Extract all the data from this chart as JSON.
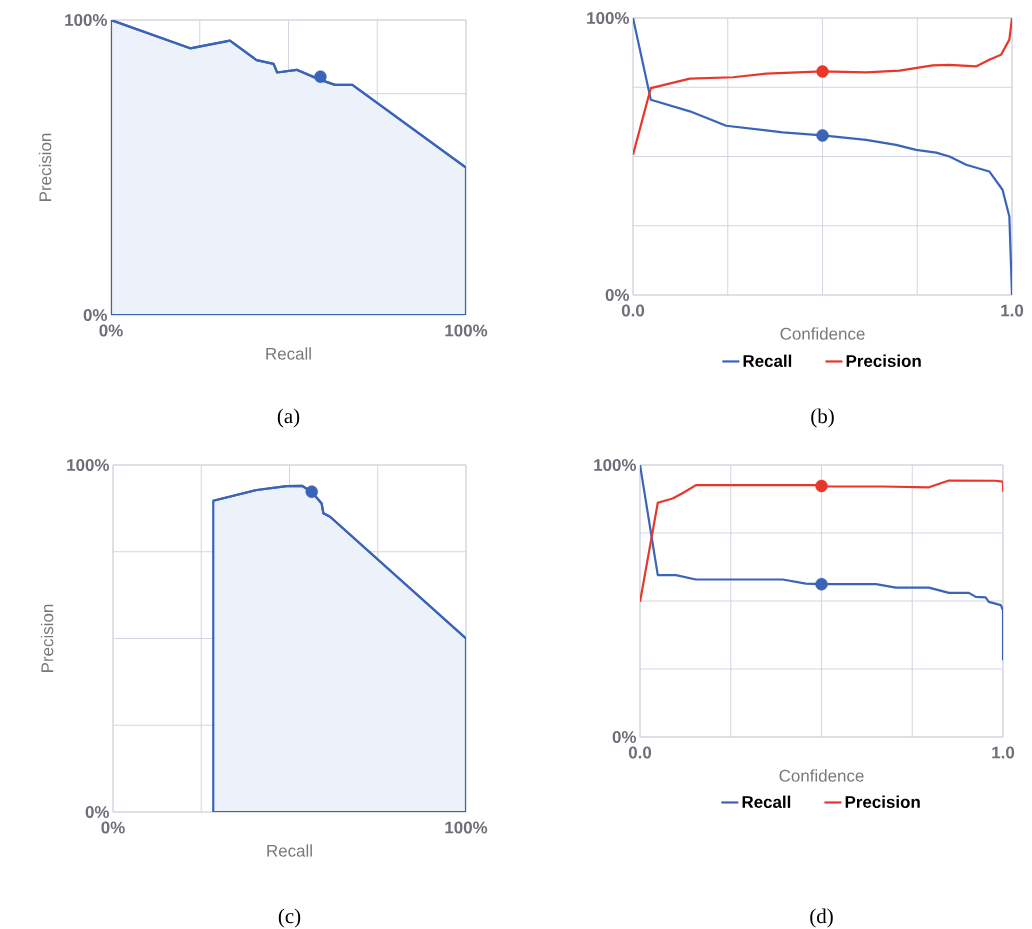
{
  "chart_data": [
    {
      "type": "area",
      "xlabel": "Recall",
      "ylabel": "Precision",
      "annotations": [
        "(a)"
      ],
      "grid": true,
      "xlim": [
        0,
        100
      ],
      "xticks": [
        {
          "value": 0,
          "label": "0%"
        },
        {
          "value": 25,
          "label": null
        },
        {
          "value": 50,
          "label": null
        },
        {
          "value": 75,
          "label": null
        },
        {
          "value": 100,
          "label": "100%"
        }
      ],
      "ylim": [
        0,
        100
      ],
      "yticks": [
        {
          "value": 0,
          "label": "0%"
        },
        {
          "value": 25,
          "label": null
        },
        {
          "value": 50,
          "label": null
        },
        {
          "value": 75,
          "label": null
        },
        {
          "value": 100,
          "label": "100%"
        }
      ],
      "series": [
        {
          "color": "#3a64b8",
          "x": [
            0,
            22.3,
            33.5,
            41,
            45.8,
            46.8,
            52.3,
            59,
            63.1,
            68,
            100
          ],
          "values": [
            100,
            90.4,
            93,
            86.4,
            85.1,
            82.2,
            83.1,
            79.7,
            78,
            78,
            50
          ]
        },
        {
          "type": "scatter",
          "marker": "circle",
          "color": "#3a64b8",
          "x": [
            59
          ],
          "values": [
            80.8
          ]
        }
      ]
    },
    {
      "type": "line",
      "xlabel": "Confidence",
      "legend": "bottom",
      "annotations": [
        "(b)"
      ],
      "grid": true,
      "xlim": [
        0,
        1
      ],
      "xticks": [
        {
          "value": 0,
          "label": "0.0"
        },
        {
          "value": 0.25,
          "label": null
        },
        {
          "value": 0.5,
          "label": null
        },
        {
          "value": 0.75,
          "label": null
        },
        {
          "value": 1,
          "label": "1.0"
        }
      ],
      "ylim": [
        0,
        100
      ],
      "yticks": [
        {
          "value": 0,
          "label": "0%"
        },
        {
          "value": 25,
          "label": null
        },
        {
          "value": 50,
          "label": null
        },
        {
          "value": 75,
          "label": null
        },
        {
          "value": 100,
          "label": "100%"
        }
      ],
      "series": [
        {
          "name": "Recall",
          "color": "#3a64b8",
          "x": [
            0,
            0.047,
            0.15,
            0.246,
            0.395,
            0.5,
            0.615,
            0.694,
            0.747,
            0.8,
            0.835,
            0.879,
            0.94,
            0.975,
            0.993,
            1.0
          ],
          "values": [
            100,
            70.5,
            66.3,
            61.1,
            58.7,
            57.6,
            56,
            54.2,
            52.4,
            51.4,
            50,
            47,
            44.6,
            38,
            28.3,
            0
          ]
        },
        {
          "name": "Precision",
          "color": "#e8372a",
          "x": [
            0,
            0.047,
            0.15,
            0.264,
            0.351,
            0.5,
            0.615,
            0.703,
            0.791,
            0.835,
            0.905,
            0.94,
            0.971,
            0.993,
            1.0
          ],
          "values": [
            50.6,
            74.7,
            78.1,
            78.6,
            79.9,
            80.7,
            80.4,
            81,
            82.9,
            83.1,
            82.5,
            84.9,
            86.7,
            92.2,
            100
          ]
        },
        {
          "type": "scatter",
          "marker": "circle",
          "color": "#3a64b8",
          "x": [
            0.5
          ],
          "values": [
            57.6
          ]
        },
        {
          "type": "scatter",
          "marker": "circle",
          "color": "#e8372a",
          "x": [
            0.5
          ],
          "values": [
            80.7
          ]
        }
      ]
    },
    {
      "type": "area",
      "xlabel": "Recall",
      "ylabel": "Precision",
      "annotations": [
        "(c)"
      ],
      "grid": true,
      "xlim": [
        0,
        100
      ],
      "xticks": [
        {
          "value": 0,
          "label": "0%"
        },
        {
          "value": 25,
          "label": null
        },
        {
          "value": 50,
          "label": null
        },
        {
          "value": 75,
          "label": null
        },
        {
          "value": 100,
          "label": "100%"
        }
      ],
      "ylim": [
        0,
        100
      ],
      "yticks": [
        {
          "value": 0,
          "label": "0%"
        },
        {
          "value": 25,
          "label": null
        },
        {
          "value": 50,
          "label": null
        },
        {
          "value": 75,
          "label": null
        },
        {
          "value": 100,
          "label": "100%"
        }
      ],
      "series": [
        {
          "color": "#3a64b8",
          "x": [
            28.4,
            40.7,
            49.2,
            53.5,
            56.3,
            59.1,
            59.6,
            61.5,
            100
          ],
          "values": [
            89.7,
            92.8,
            93.9,
            94,
            92.3,
            88.9,
            86.1,
            85.1,
            50
          ]
        },
        {
          "type": "scatter",
          "marker": "circle",
          "color": "#3a64b8",
          "x": [
            56.3
          ],
          "values": [
            92.3
          ]
        }
      ]
    },
    {
      "type": "line",
      "xlabel": "Confidence",
      "legend": "bottom",
      "annotations": [
        "(d)"
      ],
      "grid": true,
      "xlim": [
        0,
        1
      ],
      "xticks": [
        {
          "value": 0,
          "label": "0.0"
        },
        {
          "value": 0.25,
          "label": null
        },
        {
          "value": 0.5,
          "label": null
        },
        {
          "value": 0.75,
          "label": null
        },
        {
          "value": 1,
          "label": "1.0"
        }
      ],
      "ylim": [
        0,
        100
      ],
      "yticks": [
        {
          "value": 0,
          "label": "0%"
        },
        {
          "value": 25,
          "label": null
        },
        {
          "value": 50,
          "label": null
        },
        {
          "value": 75,
          "label": null
        },
        {
          "value": 100,
          "label": "100%"
        }
      ],
      "series": [
        {
          "name": "Recall",
          "color": "#3a64b8",
          "x": [
            0,
            0.049,
            0.099,
            0.154,
            0.393,
            0.457,
            0.503,
            0.65,
            0.705,
            0.796,
            0.851,
            0.906,
            0.925,
            0.952,
            0.961,
            0.994,
            1.0,
            1.0
          ],
          "values": [
            100,
            59.5,
            59.5,
            57.9,
            57.9,
            56.4,
            56.2,
            56.2,
            54.9,
            54.9,
            53,
            53,
            51.5,
            51.3,
            49.7,
            48.5,
            46.6,
            28.2
          ]
        },
        {
          "name": "Precision",
          "color": "#e8372a",
          "x": [
            0,
            0.049,
            0.09,
            0.117,
            0.154,
            0.484,
            0.503,
            0.668,
            0.796,
            0.851,
            0.979,
            1.0,
            1.0
          ],
          "values": [
            49.7,
            86.1,
            87.7,
            89.6,
            92.6,
            92.6,
            92.1,
            92.1,
            91.8,
            94.3,
            94.2,
            93.9,
            90.2
          ]
        },
        {
          "type": "scatter",
          "marker": "circle",
          "color": "#3a64b8",
          "x": [
            0.5
          ],
          "values": [
            56.2
          ]
        },
        {
          "type": "scatter",
          "marker": "circle",
          "color": "#e8372a",
          "x": [
            0.5
          ],
          "values": [
            92.3
          ]
        }
      ]
    }
  ]
}
